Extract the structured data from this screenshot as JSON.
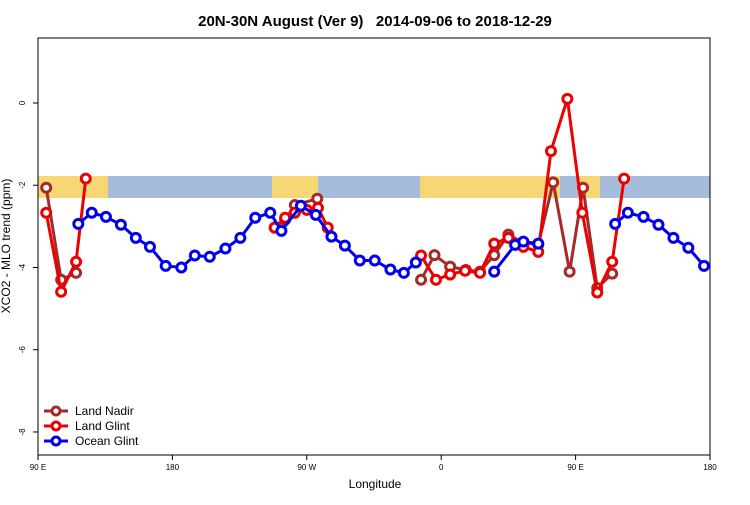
{
  "chart_data": {
    "type": "line",
    "title": "20N-30N August (Ver 9)   2014-09-06 to 2018-12-29",
    "x_label": "Longitude",
    "y_label": "XCO2 - MLO trend (ppm)",
    "xlim": [
      90,
      540
    ],
    "ylim": [
      -8.56,
      1.58
    ],
    "xticks": [
      {
        "value": 90,
        "label": "90 E"
      },
      180,
      {
        "value": 270,
        "label": "90 W"
      },
      {
        "value": 360,
        "label": "0"
      },
      {
        "value": 450,
        "label": "90 E"
      },
      {
        "value": 540,
        "label": "180"
      }
    ],
    "yticks": [
      0,
      -2,
      -4,
      -6,
      -8
    ],
    "legend": "bottom-left",
    "series": [
      {
        "name": "Land Nadir",
        "color": "#a52a2a",
        "x": [
          95.5,
          105.5,
          115.5,
          200,
          248.5,
          255.5,
          262,
          277,
          320,
          346.5,
          355.5,
          366,
          376.5,
          386,
          395.5,
          405,
          415,
          425,
          435,
          446,
          455,
          464.5,
          474.5
        ],
        "values": [
          -2.06,
          -4.3,
          -4.13,
          null,
          -3.03,
          -2.84,
          -2.48,
          -2.33,
          null,
          -4.3,
          -3.7,
          -3.98,
          -4.06,
          -4.1,
          -3.7,
          -3.2,
          -3.4,
          -3.44,
          -1.93,
          -4.1,
          -2.06,
          -4.5,
          -4.15
        ]
      },
      {
        "name": "Land Glint",
        "color": "#ee0000",
        "x": [
          95.5,
          105.5,
          115.5,
          122,
          200,
          248.5,
          255.5,
          262,
          270,
          277.5,
          284,
          320,
          346.5,
          356.5,
          366,
          376,
          386,
          395.5,
          405,
          415,
          425,
          433.5,
          444.5,
          454.5,
          464.5,
          474.5,
          482.5
        ],
        "values": [
          -2.67,
          -4.59,
          -3.86,
          -1.84,
          null,
          -3.03,
          -2.79,
          -2.67,
          -2.6,
          -2.55,
          -3.03,
          null,
          -3.71,
          -4.3,
          -4.17,
          -4.08,
          -4.13,
          -3.42,
          -3.28,
          -3.5,
          -3.62,
          -1.17,
          0.1,
          -2.67,
          -4.61,
          -3.86,
          -1.84
        ]
      },
      {
        "name": "Ocean Glint",
        "color": "#0000ee",
        "x": [
          117,
          126,
          135.5,
          145.5,
          155.5,
          165,
          175.5,
          186,
          195,
          205,
          215.5,
          225.5,
          235.5,
          245.5,
          253,
          266,
          276,
          286.5,
          295.5,
          305.5,
          315.5,
          326,
          335,
          343,
          370,
          395.5,
          409.5,
          415,
          425,
          450,
          476.5,
          485,
          495.5,
          505.5,
          515.5,
          525.5,
          536
        ],
        "values": [
          -2.94,
          -2.67,
          -2.77,
          -2.96,
          -3.28,
          -3.5,
          -3.96,
          -4.0,
          -3.71,
          -3.74,
          -3.54,
          -3.28,
          -2.79,
          -2.67,
          -3.11,
          -2.5,
          -2.72,
          -3.25,
          -3.47,
          -3.83,
          -3.83,
          -4.05,
          -4.13,
          -3.88,
          null,
          -4.1,
          -3.45,
          -3.37,
          -3.42,
          null,
          -2.94,
          -2.67,
          -2.77,
          -2.96,
          -3.28,
          -3.52,
          -3.96
        ]
      }
    ]
  }
}
